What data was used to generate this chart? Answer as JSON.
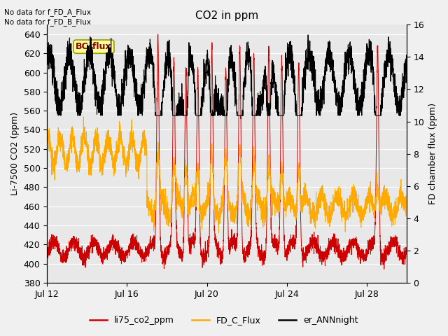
{
  "title": "CO2 in ppm",
  "ylabel_left": "Li-7500 CO2 (ppm)",
  "ylabel_right": "FD chamber flux (ppm)",
  "text_no_data_1": "No data for f_FD_A_Flux",
  "text_no_data_2": "No data for f_FD_B_Flux",
  "bc_flux_label": "BC_flux",
  "legend_labels": [
    "li75_co2_ppm",
    "FD_C_Flux",
    "er_ANNnight"
  ],
  "legend_colors": [
    "#cc0000",
    "#ffaa00",
    "#000000"
  ],
  "ylim_left": [
    380,
    650
  ],
  "ylim_right": [
    0,
    16
  ],
  "xtick_labels": [
    "Jul 12",
    "Jul 16",
    "Jul 20",
    "Jul 24",
    "Jul 28"
  ],
  "ytick_left": [
    380,
    400,
    420,
    440,
    460,
    480,
    500,
    520,
    540,
    560,
    580,
    600,
    620,
    640
  ],
  "ytick_right": [
    0,
    2,
    4,
    6,
    8,
    10,
    12,
    14,
    16
  ],
  "background_color": "#f0f0f0",
  "plot_bg_color": "#e8e8e8",
  "grid_color": "#ffffff",
  "title_fontsize": 11,
  "axis_label_fontsize": 9,
  "tick_fontsize": 9,
  "xlim": [
    0,
    18
  ],
  "xtick_positions": [
    0,
    4,
    8,
    12,
    16
  ]
}
